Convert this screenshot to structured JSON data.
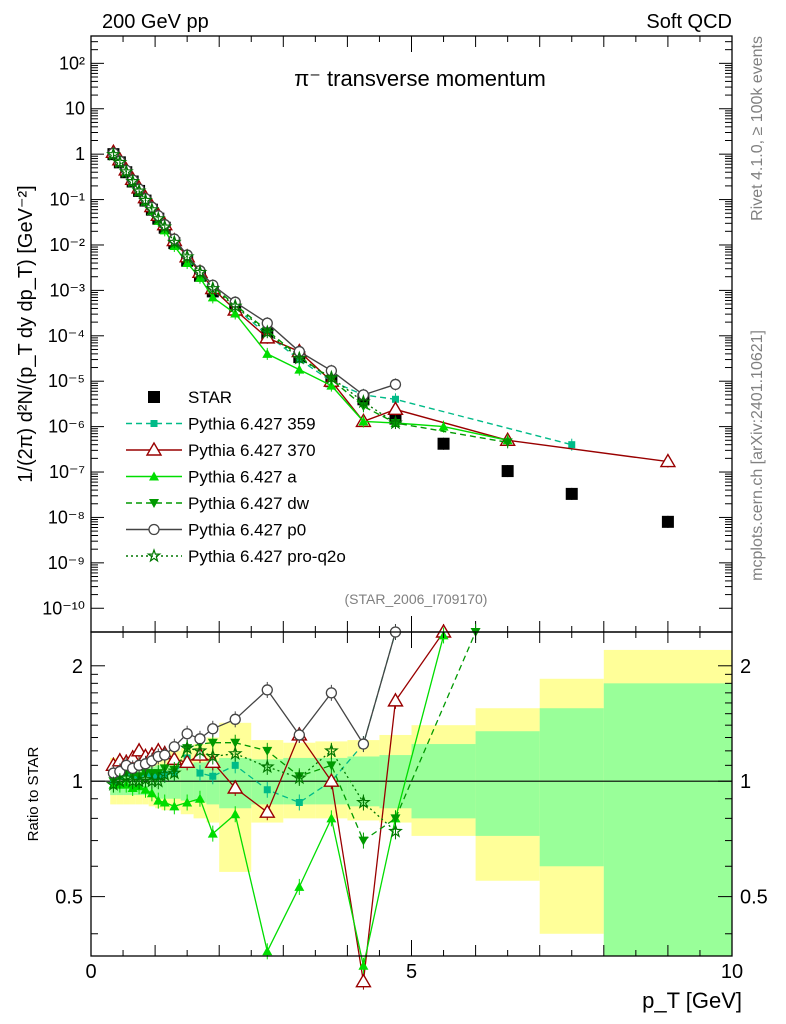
{
  "header": {
    "left": "200 GeV pp",
    "right": "Soft QCD",
    "side_top": "Rivet 4.1.0, ≥ 100k events",
    "side_bottom": "mcplots.cern.ch [arXiv:2401.10621]"
  },
  "chart_data": [
    {
      "type": "line",
      "title": "π⁻ transverse momentum",
      "watermark": "(STAR_2006_I709170)",
      "ylabel": "1/(2π)  d²N/(p_T dy dp_T) [GeV⁻²]",
      "yscale": "log",
      "xlim": [
        0,
        10
      ],
      "ylim": [
        3e-11,
        400
      ],
      "ytick_labels": [
        "10⁻¹⁰",
        "10⁻⁹",
        "10⁻⁸",
        "10⁻⁷",
        "10⁻⁶",
        "10⁻⁵",
        "10⁻⁴",
        "10⁻³",
        "10⁻²",
        "10⁻¹",
        "1",
        "10",
        "10²"
      ],
      "legend_position": "left-middle",
      "series": [
        {
          "name": "STAR",
          "color": "#000000",
          "marker": "square",
          "x": [
            0.35,
            0.45,
            0.55,
            0.65,
            0.75,
            0.85,
            0.95,
            1.05,
            1.15,
            1.3,
            1.5,
            1.7,
            1.9,
            2.25,
            2.75,
            3.25,
            3.75,
            4.25,
            4.75,
            5.5,
            6.5,
            7.5,
            9.0
          ],
          "y": [
            1.0,
            0.66,
            0.4,
            0.25,
            0.155,
            0.095,
            0.06,
            0.038,
            0.024,
            0.011,
            0.0045,
            0.0021,
            0.00095,
            0.00038,
            0.00011,
            3.4e-05,
            1e-05,
            4e-06,
            1.5e-06,
            4.2e-07,
            1.05e-07,
            3.3e-08,
            8e-09
          ]
        },
        {
          "name": "Pythia 6.427 359",
          "color": "#00bb88",
          "marker": "square-small",
          "dash": "6,4",
          "x": [
            0.35,
            0.45,
            0.55,
            0.65,
            0.75,
            0.85,
            0.95,
            1.05,
            1.15,
            1.3,
            1.5,
            1.7,
            1.9,
            2.25,
            2.75,
            3.25,
            3.75,
            4.25,
            4.75,
            7.5
          ],
          "y": [
            1.0,
            0.68,
            0.42,
            0.26,
            0.16,
            0.1,
            0.062,
            0.039,
            0.025,
            0.0115,
            0.0052,
            0.0022,
            0.00098,
            0.00042,
            0.000105,
            3e-05,
            1e-05,
            5e-06,
            4e-06,
            4e-07
          ]
        },
        {
          "name": "Pythia 6.427 370",
          "color": "#990000",
          "marker": "triangle-open",
          "x": [
            0.35,
            0.45,
            0.55,
            0.65,
            0.75,
            0.85,
            0.95,
            1.05,
            1.15,
            1.3,
            1.5,
            1.7,
            1.9,
            2.25,
            2.75,
            3.25,
            3.75,
            4.25,
            4.75,
            6.5,
            9.0
          ],
          "y": [
            1.1,
            0.75,
            0.45,
            0.28,
            0.18,
            0.11,
            0.07,
            0.045,
            0.028,
            0.0125,
            0.0055,
            0.0025,
            0.0011,
            0.00037,
            9e-05,
            4.5e-05,
            1e-05,
            1.3e-06,
            2.4e-06,
            5e-07,
            1.7e-07
          ]
        },
        {
          "name": "Pythia 6.427 a",
          "color": "#00dd00",
          "marker": "triangle",
          "x": [
            0.35,
            0.45,
            0.55,
            0.65,
            0.75,
            0.85,
            0.95,
            1.05,
            1.15,
            1.3,
            1.5,
            1.7,
            1.9,
            2.25,
            2.75,
            3.25,
            3.75,
            4.25,
            4.75,
            5.5,
            6.5
          ],
          "y": [
            0.98,
            0.65,
            0.4,
            0.24,
            0.15,
            0.09,
            0.056,
            0.034,
            0.021,
            0.0095,
            0.004,
            0.0019,
            0.0007,
            0.00031,
            4e-05,
            1.8e-05,
            8e-06,
            1.3e-06,
            1.2e-06,
            1e-06,
            5e-07
          ]
        },
        {
          "name": "Pythia 6.427 dw",
          "color": "#009900",
          "marker": "triangle-down",
          "dash": "6,4",
          "x": [
            0.35,
            0.45,
            0.55,
            0.65,
            0.75,
            0.85,
            0.95,
            1.05,
            1.15,
            1.3,
            1.5,
            1.7,
            1.9,
            2.25,
            2.75,
            3.25,
            3.75,
            4.25,
            4.75,
            6.5
          ],
          "y": [
            1.0,
            0.68,
            0.42,
            0.26,
            0.16,
            0.1,
            0.063,
            0.04,
            0.026,
            0.0118,
            0.0055,
            0.0026,
            0.0012,
            0.00048,
            0.00013,
            3.5e-05,
            1.1e-05,
            2.8e-06,
            1.2e-06,
            4.5e-07
          ]
        },
        {
          "name": "Pythia 6.427 p0",
          "color": "#444444",
          "marker": "circle-open",
          "x": [
            0.35,
            0.45,
            0.55,
            0.65,
            0.75,
            0.85,
            0.95,
            1.05,
            1.15,
            1.3,
            1.5,
            1.7,
            1.9,
            2.25,
            2.75,
            3.25,
            3.75,
            4.25,
            4.75
          ],
          "y": [
            1.05,
            0.7,
            0.44,
            0.27,
            0.17,
            0.105,
            0.068,
            0.044,
            0.028,
            0.0135,
            0.006,
            0.0027,
            0.0013,
            0.00055,
            0.00019,
            4.5e-05,
            1.7e-05,
            5e-06,
            8.5e-06
          ]
        },
        {
          "name": "Pythia 6.427 pro-q2o",
          "color": "#007700",
          "marker": "star",
          "dash": "2,3",
          "x": [
            0.35,
            0.45,
            0.55,
            0.65,
            0.75,
            0.85,
            0.95,
            1.05,
            1.15,
            1.3,
            1.5,
            1.7,
            1.9,
            2.25,
            2.75,
            3.25,
            3.75,
            4.25,
            4.75
          ],
          "y": [
            0.98,
            0.66,
            0.41,
            0.25,
            0.155,
            0.096,
            0.06,
            0.038,
            0.025,
            0.0115,
            0.0055,
            0.0025,
            0.0011,
            0.00045,
            0.00012,
            3.2e-05,
            1.2e-05,
            3.5e-06,
            1.2e-06
          ]
        }
      ]
    },
    {
      "type": "line",
      "title": "",
      "xlabel": "p_T [GeV]",
      "ylabel": "Ratio to STAR",
      "xlim": [
        0,
        10
      ],
      "ylim": [
        0.35,
        2.45
      ],
      "xtick_labels": [
        "0",
        "5",
        "10"
      ],
      "ytick_labels": [
        "0.5",
        "1",
        "2"
      ],
      "bands": {
        "edges": [
          0.3,
          0.4,
          0.5,
          0.6,
          0.7,
          0.8,
          0.9,
          1.0,
          1.1,
          1.2,
          1.4,
          1.6,
          1.8,
          2.0,
          2.5,
          3.0,
          3.5,
          4.0,
          4.5,
          5.0,
          6.0,
          7.0,
          8.0,
          10.0
        ],
        "yellow_lo": [
          0.87,
          0.87,
          0.87,
          0.87,
          0.87,
          0.87,
          0.86,
          0.85,
          0.84,
          0.84,
          0.82,
          0.8,
          0.78,
          0.58,
          0.78,
          0.8,
          0.8,
          0.79,
          0.78,
          0.72,
          0.55,
          0.4,
          0.35
        ],
        "yellow_hi": [
          1.15,
          1.15,
          1.15,
          1.15,
          1.15,
          1.15,
          1.16,
          1.17,
          1.18,
          1.2,
          1.22,
          1.25,
          1.3,
          1.42,
          1.28,
          1.26,
          1.27,
          1.28,
          1.32,
          1.4,
          1.55,
          1.85,
          2.2
        ],
        "green_lo": [
          0.92,
          0.92,
          0.92,
          0.92,
          0.92,
          0.92,
          0.91,
          0.9,
          0.9,
          0.9,
          0.89,
          0.88,
          0.87,
          0.85,
          0.87,
          0.87,
          0.87,
          0.86,
          0.85,
          0.8,
          0.72,
          0.6,
          0.35
        ],
        "green_hi": [
          1.08,
          1.08,
          1.08,
          1.08,
          1.08,
          1.08,
          1.09,
          1.1,
          1.1,
          1.1,
          1.11,
          1.12,
          1.13,
          1.15,
          1.14,
          1.15,
          1.15,
          1.16,
          1.17,
          1.25,
          1.35,
          1.55,
          1.8
        ]
      },
      "series": [
        {
          "name": "Pythia 6.427 359",
          "color": "#00bb88",
          "x": [
            0.35,
            0.45,
            0.55,
            0.65,
            0.75,
            0.85,
            0.95,
            1.05,
            1.15,
            1.3,
            1.5,
            1.7,
            1.9,
            2.25,
            2.75,
            3.25,
            3.75,
            4.25,
            4.75
          ],
          "y": [
            1.0,
            1.03,
            1.05,
            1.04,
            1.03,
            1.05,
            1.03,
            1.03,
            1.04,
            1.05,
            1.15,
            1.05,
            1.03,
            1.1,
            0.95,
            0.88,
            1.0,
            1.25,
            2.45
          ]
        },
        {
          "name": "Pythia 6.427 370",
          "color": "#990000",
          "x": [
            0.35,
            0.45,
            0.55,
            0.65,
            0.75,
            0.85,
            0.95,
            1.05,
            1.15,
            1.3,
            1.5,
            1.7,
            1.9,
            2.25,
            2.75,
            3.25,
            3.75,
            4.25,
            4.75,
            5.5
          ],
          "y": [
            1.1,
            1.13,
            1.12,
            1.15,
            1.2,
            1.16,
            1.17,
            1.2,
            1.18,
            1.14,
            1.12,
            1.17,
            1.12,
            0.96,
            0.83,
            1.32,
            1.0,
            0.3,
            1.62,
            2.45
          ]
        },
        {
          "name": "Pythia 6.427 a",
          "color": "#00dd00",
          "x": [
            0.35,
            0.45,
            0.55,
            0.65,
            0.75,
            0.85,
            0.95,
            1.05,
            1.15,
            1.3,
            1.5,
            1.7,
            1.9,
            2.25,
            2.75,
            3.25,
            3.75,
            4.25,
            4.75,
            5.5
          ],
          "y": [
            0.98,
            0.98,
            0.98,
            0.96,
            0.97,
            0.95,
            0.93,
            0.89,
            0.88,
            0.86,
            0.88,
            0.9,
            0.73,
            0.82,
            0.36,
            0.53,
            0.8,
            0.33,
            0.8,
            2.4
          ]
        },
        {
          "name": "Pythia 6.427 dw",
          "color": "#009900",
          "x": [
            0.35,
            0.45,
            0.55,
            0.65,
            0.75,
            0.85,
            0.95,
            1.05,
            1.15,
            1.3,
            1.5,
            1.7,
            1.9,
            2.25,
            2.75,
            3.25,
            3.75,
            4.25,
            4.75,
            6.0
          ],
          "y": [
            1.0,
            1.03,
            1.05,
            1.04,
            1.03,
            1.05,
            1.05,
            1.05,
            1.08,
            1.07,
            1.22,
            1.25,
            1.26,
            1.26,
            1.2,
            1.03,
            1.1,
            0.7,
            0.8,
            2.45
          ]
        },
        {
          "name": "Pythia 6.427 p0",
          "color": "#444444",
          "x": [
            0.35,
            0.45,
            0.55,
            0.65,
            0.75,
            0.85,
            0.95,
            1.05,
            1.15,
            1.3,
            1.5,
            1.7,
            1.9,
            2.25,
            2.75,
            3.25,
            3.75,
            4.25,
            4.75
          ],
          "y": [
            1.05,
            1.06,
            1.1,
            1.08,
            1.1,
            1.11,
            1.13,
            1.16,
            1.17,
            1.23,
            1.33,
            1.29,
            1.37,
            1.45,
            1.73,
            1.32,
            1.7,
            1.25,
            2.45
          ]
        },
        {
          "name": "Pythia 6.427 pro-q2o",
          "color": "#007700",
          "x": [
            0.35,
            0.45,
            0.55,
            0.65,
            0.75,
            0.85,
            0.95,
            1.05,
            1.15,
            1.3,
            1.5,
            1.7,
            1.9,
            2.25,
            2.75,
            3.25,
            3.75,
            4.25,
            4.75
          ],
          "y": [
            0.98,
            1.0,
            1.02,
            1.0,
            1.0,
            1.01,
            1.0,
            1.0,
            1.04,
            1.05,
            1.22,
            1.2,
            1.16,
            1.18,
            1.09,
            1.02,
            1.2,
            0.88,
            0.74
          ]
        }
      ]
    }
  ]
}
